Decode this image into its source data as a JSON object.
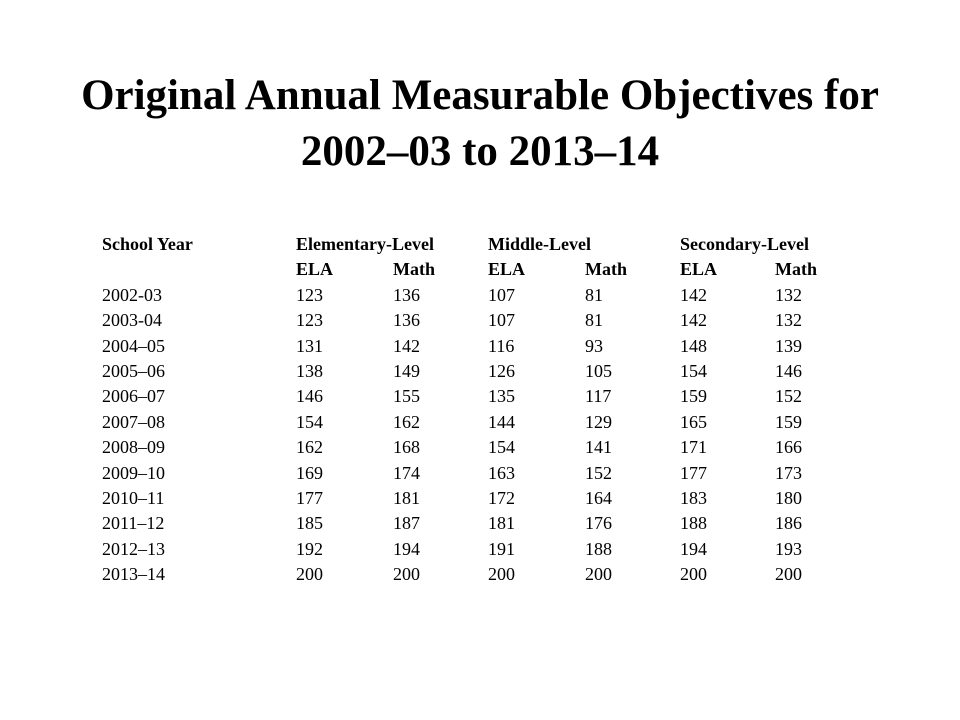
{
  "slide": {
    "title_line1": "Original Annual Measurable Objectives for",
    "title_line2": "2002–03 to 2013–14"
  },
  "table": {
    "header_row1": [
      "School Year",
      "Elementary-Level",
      "Middle-Level",
      "Secondary-Level"
    ],
    "header_row2": [
      "",
      "ELA",
      "Math",
      "ELA",
      "Math",
      "ELA",
      "Math"
    ],
    "rows": [
      [
        "2002-03",
        "123",
        "136",
        "107",
        "81",
        "142",
        "132"
      ],
      [
        "2003-04",
        "123",
        "136",
        "107",
        "81",
        "142",
        "132"
      ],
      [
        "2004–05",
        "131",
        "142",
        "116",
        "93",
        "148",
        "139"
      ],
      [
        "2005–06",
        "138",
        "149",
        "126",
        "105",
        "154",
        "146"
      ],
      [
        "2006–07",
        "146",
        "155",
        "135",
        "117",
        "159",
        "152"
      ],
      [
        "2007–08",
        "154",
        "162",
        "144",
        "129",
        "165",
        "159"
      ],
      [
        "2008–09",
        "162",
        "168",
        "154",
        "141",
        "171",
        "166"
      ],
      [
        "2009–10",
        "169",
        "174",
        "163",
        "152",
        "177",
        "173"
      ],
      [
        "2010–11",
        "177",
        "181",
        "172",
        "164",
        "183",
        "180"
      ],
      [
        "2011–12",
        "185",
        "187",
        "181",
        "176",
        "188",
        "186"
      ],
      [
        "2012–13",
        "192",
        "194",
        "191",
        "188",
        "194",
        "193"
      ],
      [
        "2013–14",
        "200",
        "200",
        "200",
        "200",
        "200",
        "200"
      ]
    ]
  }
}
